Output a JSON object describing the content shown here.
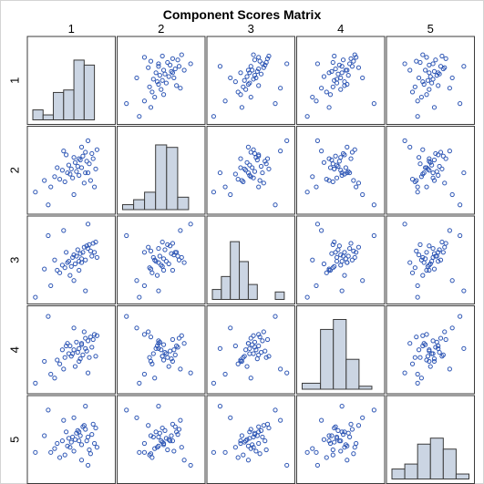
{
  "chart_data": {
    "type": "scatter-matrix",
    "title": "Component Scores Matrix",
    "variables": [
      "1",
      "2",
      "3",
      "4",
      "5"
    ],
    "range": [
      -3,
      3
    ],
    "grid": false,
    "colors": {
      "marker": "#2f57b5",
      "bar_fill": "#cbd5e3",
      "bar_stroke": "#3b3b3b",
      "cell_border": "#3b3b3b",
      "background": "#ffffff"
    },
    "histograms": [
      {
        "variable": "1",
        "bin_edges": [
          -3,
          -2.2,
          -1.4,
          -0.6,
          0.2,
          1.0,
          1.8
        ],
        "percent": [
          10.0,
          5.0,
          27.5,
          30.0,
          60.0,
          55.0
        ]
      },
      {
        "variable": "2",
        "bin_edges": [
          -3,
          -2.14,
          -1.29,
          -0.43,
          0.43,
          1.29,
          2.14,
          3
        ],
        "percent": [
          5.0,
          10.0,
          17.5,
          65.0,
          62.5,
          12.5,
          0
        ]
      },
      {
        "variable": "3",
        "bin_edges": [
          -3,
          -2.3,
          -1.6,
          -0.9,
          -0.2,
          0.5,
          1.2,
          1.9,
          2.6
        ],
        "percent": [
          10.0,
          23.0,
          58.0,
          38.0,
          15.0,
          0,
          0,
          7.5
        ]
      },
      {
        "variable": "4",
        "bin_edges": [
          -3,
          -1.57,
          -0.57,
          0.43,
          1.43,
          2.43
        ],
        "percent": [
          6.0,
          60.0,
          70.0,
          30.0,
          3.0
        ]
      },
      {
        "variable": "5",
        "bin_edges": [
          -3,
          -2.0,
          -1.0,
          0,
          1.0,
          2.0,
          3.0
        ],
        "percent": [
          10.0,
          15.0,
          35.0,
          41.0,
          30.0,
          5.0
        ]
      }
    ],
    "scores": [
      [
        -2.8,
        -1.7,
        -2.9,
        -2.6,
        -1.0
      ],
      [
        -2.1,
        -0.8,
        -0.7,
        -0.9,
        0.3
      ],
      [
        -1.6,
        -1.3,
        -2.0,
        -1.9,
        -1.0
      ],
      [
        -1.3,
        -0.5,
        0.0,
        -2.2,
        -0.7
      ],
      [
        -1.1,
        0.2,
        -0.8,
        -0.8,
        -0.3
      ],
      [
        -0.9,
        -0.7,
        -1.0,
        -1.1,
        -1.4
      ],
      [
        -0.7,
        0.0,
        -0.4,
        0.0,
        -0.1
      ],
      [
        -0.5,
        -0.9,
        -0.6,
        -0.6,
        -1.2
      ],
      [
        -0.3,
        -0.2,
        -0.2,
        0.5,
        -0.5
      ],
      [
        -0.2,
        0.4,
        -0.1,
        -0.3,
        0.1
      ],
      [
        -0.1,
        -0.3,
        -1.2,
        0.3,
        -0.6
      ],
      [
        0.0,
        0.1,
        -0.5,
        -0.5,
        -0.2
      ],
      [
        0.1,
        -0.6,
        0.2,
        -0.3,
        0.2
      ],
      [
        0.2,
        1.0,
        0.4,
        0.0,
        -0.9
      ],
      [
        0.3,
        0.6,
        -0.3,
        -1.3,
        0.0
      ],
      [
        0.4,
        -0.1,
        0.3,
        0.6,
        0.5
      ],
      [
        0.5,
        0.3,
        0.8,
        -0.2,
        0.7
      ],
      [
        0.6,
        -0.4,
        -0.1,
        0.1,
        0.6
      ],
      [
        0.7,
        0.8,
        0.5,
        -0.7,
        0.3
      ],
      [
        0.8,
        0.2,
        0.1,
        0.4,
        -0.4
      ],
      [
        0.9,
        1.1,
        0.6,
        -0.4,
        1.0
      ],
      [
        1.0,
        -1.0,
        1.0,
        1.4,
        1.1
      ],
      [
        1.1,
        1.4,
        0.0,
        0.9,
        0.8
      ],
      [
        1.2,
        0.7,
        1.1,
        -0.1,
        -0.1
      ],
      [
        1.3,
        -0.2,
        0.9,
        0.7,
        0.2
      ],
      [
        1.4,
        0.5,
        1.2,
        -0.6,
        -0.8
      ],
      [
        1.5,
        -0.8,
        0.7,
        1.0,
        -1.1
      ],
      [
        1.6,
        1.3,
        0.3,
        0.2,
        0.4
      ],
      [
        1.7,
        0.9,
        1.3,
        0.8,
        1.2
      ],
      [
        1.8,
        -1.3,
        0.6,
        1.2,
        -0.3
      ],
      [
        1.9,
        0.1,
        1.4,
        -0.5,
        0.9
      ],
      [
        2.0,
        1.6,
        0.2,
        1.1,
        -0.6
      ],
      [
        0.6,
        0.9,
        -0.8,
        -0.9,
        -0.1
      ],
      [
        -0.4,
        1.2,
        0.6,
        0.3,
        0.6
      ],
      [
        0.8,
        1.8,
        -0.2,
        0.5,
        -1.6
      ],
      [
        -1.8,
        -2.7,
        1.9,
        2.6,
        2.3
      ],
      [
        1.3,
        2.3,
        2.8,
        -1.8,
        -2.0
      ],
      [
        0.2,
        -1.9,
        -1.6,
        1.7,
        1.7
      ],
      [
        -0.6,
        1.5,
        2.3,
        -1.5,
        1.5
      ],
      [
        1.1,
        -0.2,
        -2.4,
        0.1,
        2.6
      ]
    ]
  }
}
